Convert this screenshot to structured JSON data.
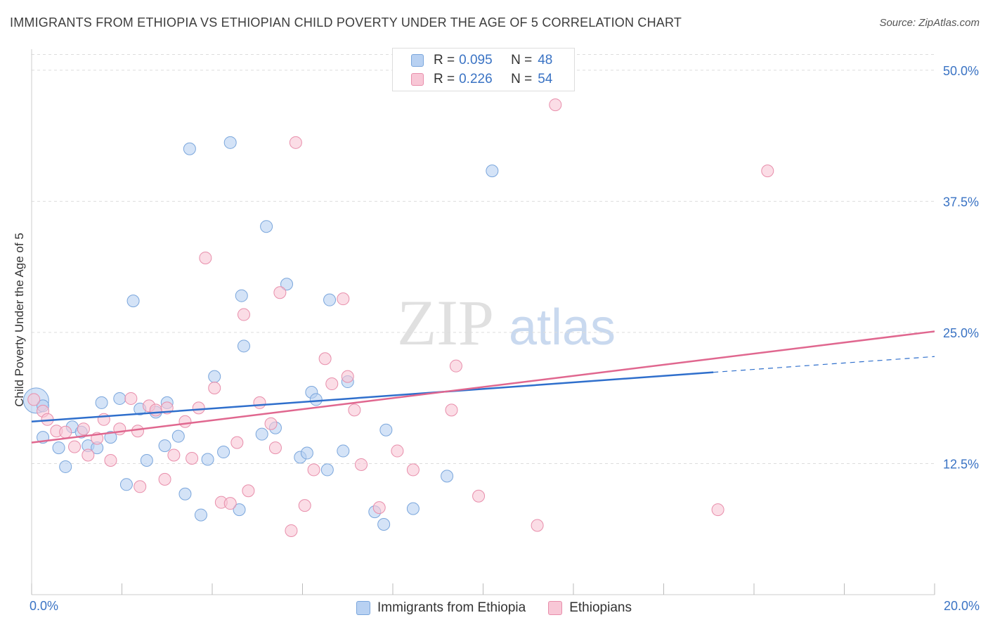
{
  "title": "IMMIGRANTS FROM ETHIOPIA VS ETHIOPIAN CHILD POVERTY UNDER THE AGE OF 5 CORRELATION CHART",
  "source": "Source: ZipAtlas.com",
  "watermark": {
    "part1": "ZIP",
    "part2": "atlas"
  },
  "legend_top": [
    {
      "r_label": "R =",
      "r_value": "0.095",
      "n_label": "N =",
      "n_value": "48"
    },
    {
      "r_label": "R =",
      "r_value": "0.226",
      "n_label": "N =",
      "n_value": "54"
    }
  ],
  "legend_bottom": [
    {
      "label": "Immigrants from Ethiopia"
    },
    {
      "label": "Ethiopians"
    }
  ],
  "x_axis_labels": {
    "left": "0.0%",
    "right": "20.0%"
  },
  "colors": {
    "blue_fill": "#b8d1f2",
    "blue_stroke": "#7aa6dc",
    "blue_line": "#2f6fcc",
    "pink_fill": "#f8c7d6",
    "pink_stroke": "#e88eab",
    "pink_line": "#e0678f",
    "tick_text": "#3a73c4",
    "grid": "#dddddd"
  },
  "chart_data": {
    "type": "scatter",
    "title": "IMMIGRANTS FROM ETHIOPIA VS ETHIOPIAN CHILD POVERTY UNDER THE AGE OF 5 CORRELATION CHART",
    "xlabel": "",
    "ylabel": "Child Poverty Under the Age of 5",
    "xlim": [
      0,
      20
    ],
    "ylim": [
      0,
      52
    ],
    "y_ticks": [
      {
        "value": 12.5,
        "label": "12.5%"
      },
      {
        "value": 25.0,
        "label": "25.0%"
      },
      {
        "value": 37.5,
        "label": "37.5%"
      },
      {
        "value": 50.0,
        "label": "50.0%"
      }
    ],
    "grid": true,
    "legend_position": "top-center",
    "series": [
      {
        "name": "Immigrants from Ethiopia",
        "color": "#b8d1f2",
        "r": 0.095,
        "n": 48,
        "trend": {
          "x0": 0,
          "y0": 16.5,
          "x1": 15.1,
          "y1": 21.2,
          "dash_to_x": 20,
          "dash_to_y": 22.7
        },
        "points": [
          [
            0.1,
            18.5
          ],
          [
            0.25,
            18.0
          ],
          [
            0.25,
            15.0
          ],
          [
            0.6,
            14.0
          ],
          [
            0.75,
            12.2
          ],
          [
            0.9,
            16.0
          ],
          [
            1.1,
            15.5
          ],
          [
            1.25,
            14.2
          ],
          [
            1.45,
            14.0
          ],
          [
            1.55,
            18.3
          ],
          [
            1.75,
            15.0
          ],
          [
            1.95,
            18.7
          ],
          [
            2.1,
            10.5
          ],
          [
            2.25,
            28.0
          ],
          [
            2.4,
            17.7
          ],
          [
            2.55,
            12.8
          ],
          [
            2.75,
            17.4
          ],
          [
            2.95,
            14.2
          ],
          [
            3.0,
            18.3
          ],
          [
            3.25,
            15.1
          ],
          [
            3.4,
            9.6
          ],
          [
            3.5,
            42.5
          ],
          [
            3.75,
            7.6
          ],
          [
            3.9,
            12.9
          ],
          [
            4.05,
            20.8
          ],
          [
            4.25,
            13.6
          ],
          [
            4.4,
            43.1
          ],
          [
            4.6,
            8.1
          ],
          [
            4.65,
            28.5
          ],
          [
            4.7,
            23.7
          ],
          [
            5.1,
            15.3
          ],
          [
            5.2,
            35.1
          ],
          [
            5.4,
            15.9
          ],
          [
            5.65,
            29.6
          ],
          [
            5.95,
            13.1
          ],
          [
            6.1,
            13.5
          ],
          [
            6.2,
            19.3
          ],
          [
            6.3,
            18.6
          ],
          [
            6.55,
            11.9
          ],
          [
            6.6,
            28.1
          ],
          [
            6.9,
            13.7
          ],
          [
            7.0,
            20.3
          ],
          [
            7.6,
            7.9
          ],
          [
            7.8,
            6.7
          ],
          [
            7.85,
            15.7
          ],
          [
            8.45,
            8.2
          ],
          [
            9.2,
            11.3
          ],
          [
            10.2,
            40.4
          ]
        ]
      },
      {
        "name": "Ethiopians",
        "color": "#f8c7d6",
        "r": 0.226,
        "n": 54,
        "trend": {
          "x0": 0,
          "y0": 14.5,
          "x1": 20,
          "y1": 25.1
        },
        "points": [
          [
            0.05,
            18.6
          ],
          [
            0.25,
            17.5
          ],
          [
            0.35,
            16.7
          ],
          [
            0.55,
            15.6
          ],
          [
            0.75,
            15.5
          ],
          [
            0.95,
            14.1
          ],
          [
            1.15,
            15.8
          ],
          [
            1.25,
            13.3
          ],
          [
            1.45,
            14.9
          ],
          [
            1.6,
            16.7
          ],
          [
            1.75,
            12.8
          ],
          [
            1.95,
            15.8
          ],
          [
            2.2,
            18.7
          ],
          [
            2.35,
            15.6
          ],
          [
            2.4,
            10.3
          ],
          [
            2.6,
            18.0
          ],
          [
            2.75,
            17.6
          ],
          [
            2.95,
            11.0
          ],
          [
            3.0,
            17.8
          ],
          [
            3.15,
            13.3
          ],
          [
            3.4,
            16.5
          ],
          [
            3.55,
            13.0
          ],
          [
            3.7,
            17.8
          ],
          [
            3.85,
            32.1
          ],
          [
            4.05,
            19.7
          ],
          [
            4.2,
            8.8
          ],
          [
            4.4,
            8.7
          ],
          [
            4.55,
            14.5
          ],
          [
            4.7,
            26.7
          ],
          [
            4.8,
            9.9
          ],
          [
            5.05,
            18.3
          ],
          [
            5.3,
            16.3
          ],
          [
            5.4,
            14.0
          ],
          [
            5.5,
            28.8
          ],
          [
            5.75,
            6.1
          ],
          [
            5.85,
            43.1
          ],
          [
            6.05,
            8.5
          ],
          [
            6.25,
            11.9
          ],
          [
            6.5,
            22.5
          ],
          [
            6.65,
            20.1
          ],
          [
            6.9,
            28.2
          ],
          [
            7.0,
            20.8
          ],
          [
            7.15,
            17.6
          ],
          [
            7.3,
            12.4
          ],
          [
            7.7,
            8.3
          ],
          [
            8.1,
            13.7
          ],
          [
            8.45,
            11.9
          ],
          [
            9.3,
            17.6
          ],
          [
            9.4,
            21.8
          ],
          [
            9.9,
            9.4
          ],
          [
            11.2,
            6.6
          ],
          [
            11.6,
            46.7
          ],
          [
            15.2,
            8.1
          ],
          [
            16.3,
            40.4
          ]
        ]
      }
    ]
  }
}
